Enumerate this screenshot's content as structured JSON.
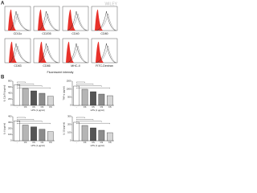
{
  "figure": {
    "watermark": "WILEY",
    "panel_a": {
      "label": "A",
      "x_label": "Fluorescent intensity",
      "histograms": [
        "CD11c",
        "CD205",
        "CD40",
        "CD80",
        "CD83",
        "CD86",
        "MHC-II",
        "FITC-Dextran"
      ]
    },
    "panel_b": {
      "label": "B"
    }
  },
  "chart_data": [
    {
      "type": "bar",
      "y_label": "IL-12p70 (pg/ml)",
      "x_label": "LPS (1 μg/ml)",
      "categories": [
        "-",
        "CS",
        "CS",
        "CS",
        "CS"
      ],
      "values": [
        680,
        560,
        480,
        400,
        300
      ],
      "colors": [
        "#ffffff",
        "#b5b5b5",
        "#555555",
        "#8c8c8c",
        "#d6d6d6"
      ],
      "ylim": [
        0,
        800
      ],
      "yticks": [
        0,
        200,
        400,
        600,
        800
      ]
    },
    {
      "type": "bar",
      "y_label": "TNF-α (pg/ml)",
      "x_label": "LPS (1 μg/ml)",
      "categories": [
        "-",
        "CS",
        "CS",
        "CS",
        "CS"
      ],
      "values": [
        1200,
        1000,
        850,
        700,
        600
      ],
      "colors": [
        "#ffffff",
        "#b5b5b5",
        "#555555",
        "#8c8c8c",
        "#d6d6d6"
      ],
      "ylim": [
        0,
        1500
      ],
      "yticks": [
        0,
        500,
        1000,
        1500
      ]
    },
    {
      "type": "bar",
      "y_label": "IL-6 (pg/ml)",
      "x_label": "LPS (1 μg/ml)",
      "categories": [
        "-",
        "CS",
        "CS",
        "CS",
        "CS"
      ],
      "values": [
        330,
        260,
        230,
        190,
        150
      ],
      "colors": [
        "#ffffff",
        "#b5b5b5",
        "#555555",
        "#8c8c8c",
        "#d6d6d6"
      ],
      "ylim": [
        0,
        400
      ],
      "yticks": [
        0,
        100,
        200,
        300,
        400
      ]
    },
    {
      "type": "bar",
      "y_label": "IL-1β (pg/ml)",
      "x_label": "LPS (1 μg/ml)",
      "categories": [
        "-",
        "CS",
        "CS",
        "CS",
        "CS"
      ],
      "values": [
        230,
        190,
        160,
        130,
        100
      ],
      "colors": [
        "#ffffff",
        "#b5b5b5",
        "#555555",
        "#8c8c8c",
        "#d6d6d6"
      ],
      "ylim": [
        0,
        300
      ],
      "yticks": [
        0,
        100,
        200,
        300
      ]
    }
  ]
}
